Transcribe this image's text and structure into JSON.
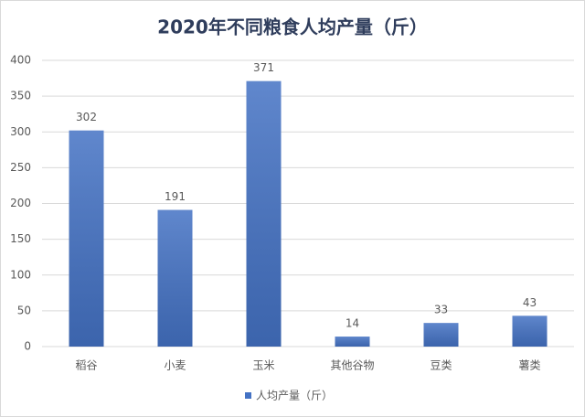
{
  "chart_data": {
    "type": "bar",
    "title": "2020年不同粮食人均产量（斤）",
    "categories": [
      "稻谷",
      "小麦",
      "玉米",
      "其他谷物",
      "豆类",
      "薯类"
    ],
    "series": [
      {
        "name": "人均产量（斤）",
        "color": "#4472c4",
        "values": [
          302,
          191,
          371,
          14,
          33,
          43
        ]
      }
    ],
    "ylim": [
      0,
      400
    ],
    "yticks": [
      0,
      50,
      100,
      150,
      200,
      250,
      300,
      350,
      400
    ],
    "grid": true,
    "legend": "bottom"
  }
}
